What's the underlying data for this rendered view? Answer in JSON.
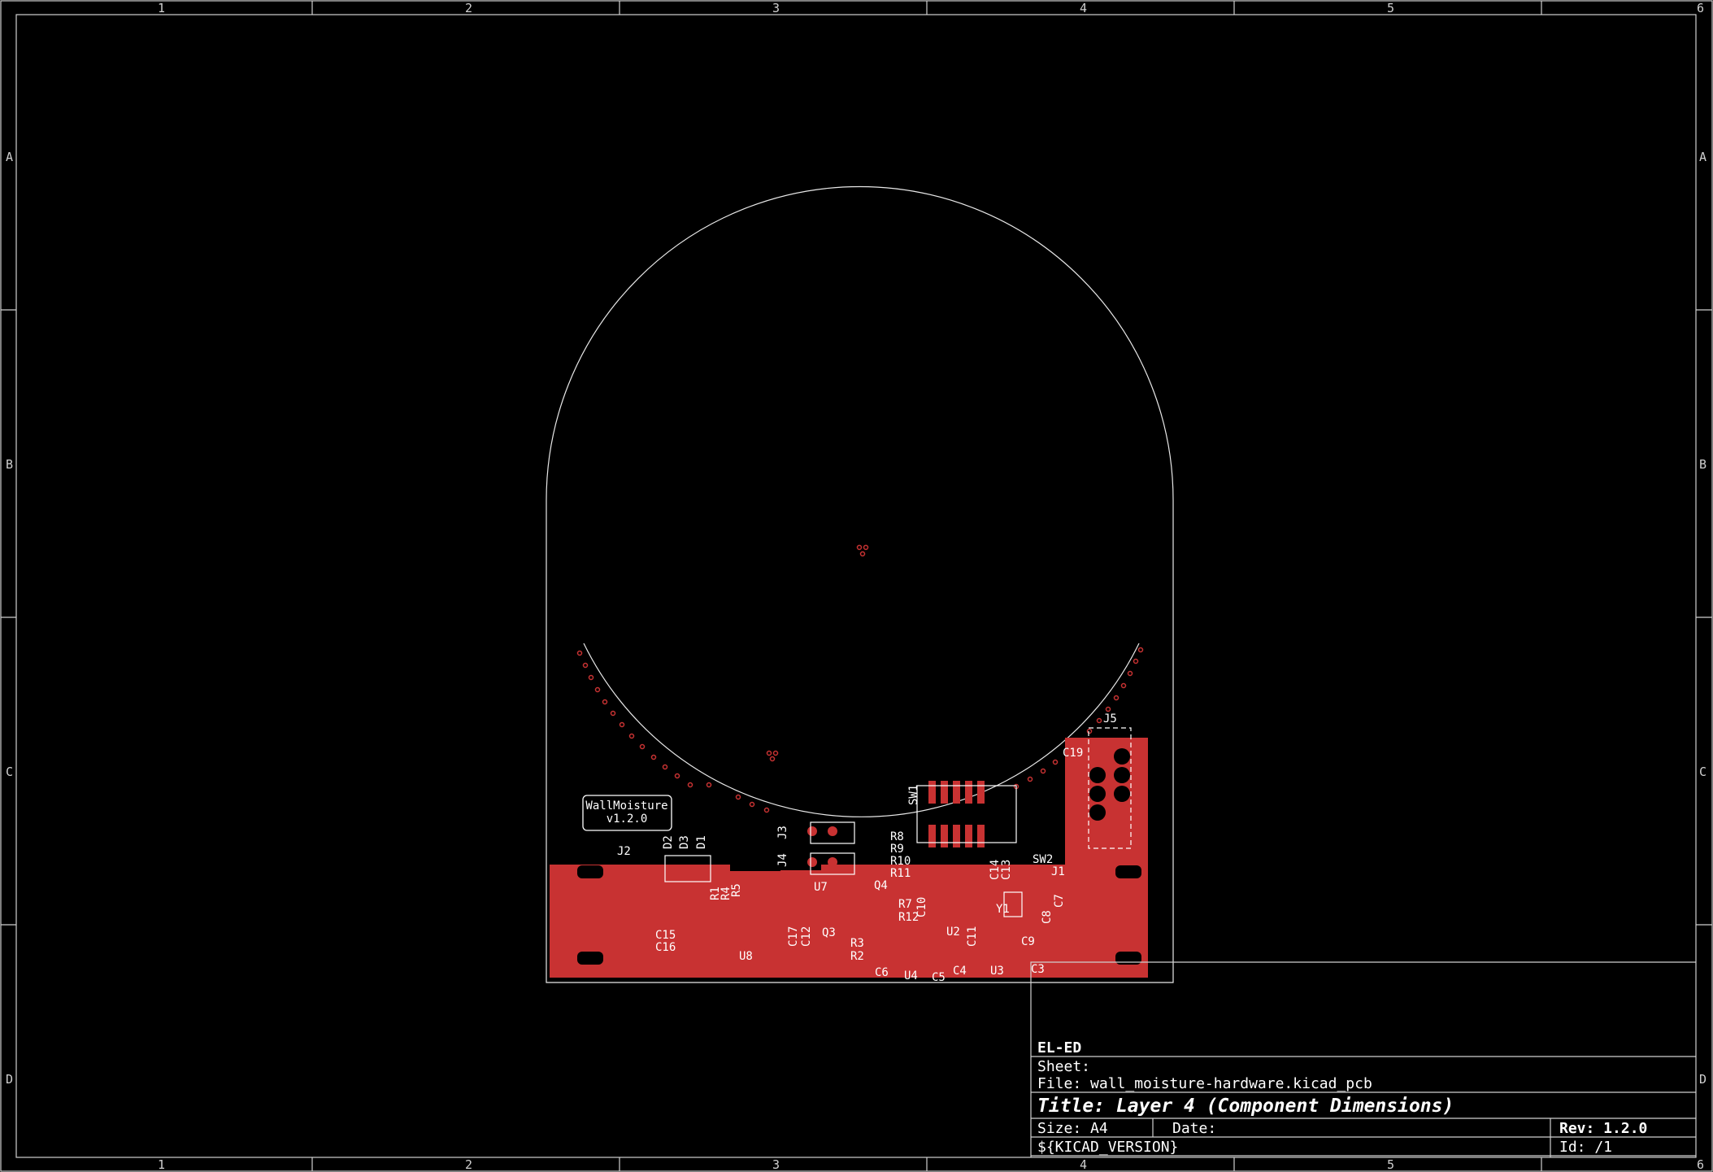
{
  "frame": {
    "columns": [
      "1",
      "2",
      "3",
      "4",
      "5",
      "6"
    ],
    "rows": [
      "A",
      "B",
      "C",
      "D"
    ]
  },
  "board": {
    "label_line1": "WallMoisture",
    "label_line2": "v1.2.0"
  },
  "components": {
    "J2": "J2",
    "D2": "D2",
    "D3": "D3",
    "D1": "D1",
    "R1": "R1",
    "R4": "R4",
    "R5": "R5",
    "C15": "C15",
    "C16": "C16",
    "U8": "U8",
    "J3": "J3",
    "J4": "J4",
    "U7": "U7",
    "C17": "C17",
    "C12": "C12",
    "Q3": "Q3",
    "Q4": "Q4",
    "R8": "R8",
    "R9": "R9",
    "R10": "R10",
    "R11": "R11",
    "R7": "R7",
    "R12": "R12",
    "C10": "C10",
    "R3": "R3",
    "R2": "R2",
    "C6": "C6",
    "U4": "U4",
    "C5": "C5",
    "C4": "C4",
    "U2": "U2",
    "C11": "C11",
    "U3": "U3",
    "C3": "C3",
    "SW1": "SW1",
    "SW2": "SW2",
    "C14": "C14",
    "C13": "C13",
    "Y1": "Y1",
    "C9": "C9",
    "C8": "C8",
    "C7": "C7",
    "J1": "J1",
    "J5": "J5",
    "C19": "C19"
  },
  "title_block": {
    "company": "EL-ED",
    "sheet": "Sheet:",
    "file": "File: wall_moisture-hardware.kicad_pcb",
    "title": "Title: Layer 4 (Component Dimensions)",
    "size": "Size: A4",
    "date": "Date:",
    "rev": "Rev: 1.2.0",
    "version": "${KICAD_VERSION}",
    "id": "Id: /1"
  },
  "colors": {
    "copper": "#c83232",
    "outline": "#e8e8e8",
    "background": "#000000"
  }
}
